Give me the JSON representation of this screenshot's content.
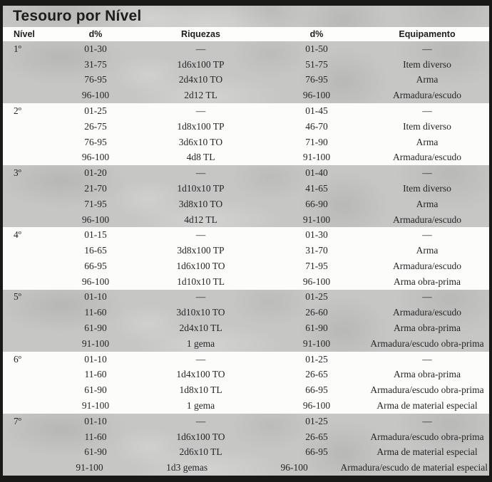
{
  "title": "Tesouro por Nível",
  "columns": {
    "nivel": "Nível",
    "d_riquezas": "d%",
    "riquezas": "Riquezas",
    "d_equipamento": "d%",
    "equipamento": "Equipamento"
  },
  "colors": {
    "frame_black": "#191917",
    "texture_gray": "#c6c6c4",
    "row_white": "#fcfcfa",
    "header_white": "#fdfdfc",
    "text": "#26262a"
  },
  "levels": [
    {
      "level": "1º",
      "rows": [
        {
          "d1": "01-30",
          "riquezas": "—",
          "d2": "01-50",
          "equipamento": "—"
        },
        {
          "d1": "31-75",
          "riquezas": "1d6x100 TP",
          "d2": "51-75",
          "equipamento": "Item diverso"
        },
        {
          "d1": "76-95",
          "riquezas": "2d4x10 TO",
          "d2": "76-95",
          "equipamento": "Arma"
        },
        {
          "d1": "96-100",
          "riquezas": "2d12 TL",
          "d2": "96-100",
          "equipamento": "Armadura/escudo"
        }
      ]
    },
    {
      "level": "2º",
      "rows": [
        {
          "d1": "01-25",
          "riquezas": "—",
          "d2": "01-45",
          "equipamento": "—"
        },
        {
          "d1": "26-75",
          "riquezas": "1d8x100 TP",
          "d2": "46-70",
          "equipamento": "Item diverso"
        },
        {
          "d1": "76-95",
          "riquezas": "3d6x10 TO",
          "d2": "71-90",
          "equipamento": "Arma"
        },
        {
          "d1": "96-100",
          "riquezas": "4d8 TL",
          "d2": "91-100",
          "equipamento": "Armadura/escudo"
        }
      ]
    },
    {
      "level": "3º",
      "rows": [
        {
          "d1": "01-20",
          "riquezas": "—",
          "d2": "01-40",
          "equipamento": "—"
        },
        {
          "d1": "21-70",
          "riquezas": "1d10x10 TP",
          "d2": "41-65",
          "equipamento": "Item diverso"
        },
        {
          "d1": "71-95",
          "riquezas": "3d8x10 TO",
          "d2": "66-90",
          "equipamento": "Arma"
        },
        {
          "d1": "96-100",
          "riquezas": "4d12 TL",
          "d2": "91-100",
          "equipamento": "Armadura/escudo"
        }
      ]
    },
    {
      "level": "4º",
      "rows": [
        {
          "d1": "01-15",
          "riquezas": "—",
          "d2": "01-30",
          "equipamento": "—"
        },
        {
          "d1": "16-65",
          "riquezas": "3d8x100 TP",
          "d2": "31-70",
          "equipamento": "Arma"
        },
        {
          "d1": "66-95",
          "riquezas": "1d6x100 TO",
          "d2": "71-95",
          "equipamento": "Armadura/escudo"
        },
        {
          "d1": "96-100",
          "riquezas": "1d10x10 TL",
          "d2": "96-100",
          "equipamento": "Arma obra-prima"
        }
      ]
    },
    {
      "level": "5º",
      "rows": [
        {
          "d1": "01-10",
          "riquezas": "—",
          "d2": "01-25",
          "equipamento": "—"
        },
        {
          "d1": "11-60",
          "riquezas": "3d10x10 TO",
          "d2": "26-60",
          "equipamento": "Armadura/escudo"
        },
        {
          "d1": "61-90",
          "riquezas": "2d4x10 TL",
          "d2": "61-90",
          "equipamento": "Arma obra-prima"
        },
        {
          "d1": "91-100",
          "riquezas": "1 gema",
          "d2": "91-100",
          "equipamento": "Armadura/escudo obra-prima"
        }
      ]
    },
    {
      "level": "6º",
      "rows": [
        {
          "d1": "01-10",
          "riquezas": "—",
          "d2": "01-25",
          "equipamento": "—"
        },
        {
          "d1": "11-60",
          "riquezas": "1d4x100 TO",
          "d2": "26-65",
          "equipamento": "Arma obra-prima"
        },
        {
          "d1": "61-90",
          "riquezas": "1d8x10 TL",
          "d2": "66-95",
          "equipamento": "Armadura/escudo obra-prima"
        },
        {
          "d1": "91-100",
          "riquezas": "1 gema",
          "d2": "96-100",
          "equipamento": "Arma de material especial"
        }
      ]
    },
    {
      "level": "7º",
      "rows": [
        {
          "d1": "01-10",
          "riquezas": "—",
          "d2": "01-25",
          "equipamento": "—"
        },
        {
          "d1": "11-60",
          "riquezas": "1d6x100 TO",
          "d2": "26-65",
          "equipamento": "Armadura/escudo obra-prima"
        },
        {
          "d1": "61-90",
          "riquezas": "2d6x10 TL",
          "d2": "66-95",
          "equipamento": "Arma de material especial"
        },
        {
          "d1": "91-100",
          "riquezas": "1d3 gemas",
          "d2": "96-100",
          "equipamento": "Armadura/escudo de material especial"
        }
      ]
    }
  ]
}
